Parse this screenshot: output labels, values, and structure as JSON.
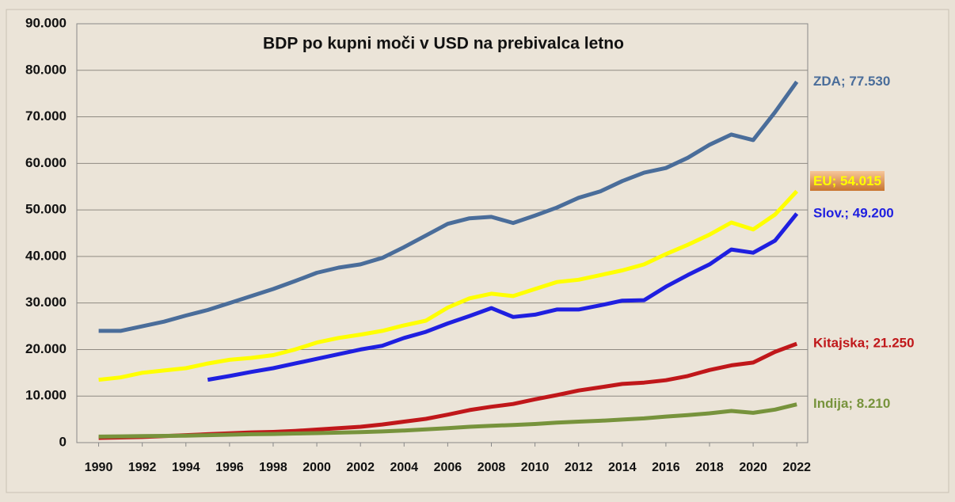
{
  "chart_data": {
    "type": "line",
    "title": "BDP po kupni moči v USD na prebivalca letno",
    "x": [
      1990,
      1991,
      1992,
      1993,
      1994,
      1995,
      1996,
      1997,
      1998,
      1999,
      2000,
      2001,
      2002,
      2003,
      2004,
      2005,
      2006,
      2007,
      2008,
      2009,
      2010,
      2011,
      2012,
      2013,
      2014,
      2015,
      2016,
      2017,
      2018,
      2019,
      2020,
      2021,
      2022
    ],
    "xlim": [
      1989,
      2022.5
    ],
    "xticks": [
      1990,
      1992,
      1994,
      1996,
      1998,
      2000,
      2002,
      2004,
      2006,
      2008,
      2010,
      2012,
      2014,
      2016,
      2018,
      2020,
      2022
    ],
    "ylim": [
      0,
      90000
    ],
    "yticks": [
      0,
      {
        "value": 10000,
        "label": "10.000"
      },
      {
        "value": 20000,
        "label": "20.000"
      },
      {
        "value": 30000,
        "label": "30.000"
      },
      {
        "value": 40000,
        "label": "40.000"
      },
      {
        "value": 50000,
        "label": "50.000"
      },
      {
        "value": 60000,
        "label": "60.000"
      },
      {
        "value": 70000,
        "label": "70.000"
      },
      {
        "value": 80000,
        "label": "80.000"
      },
      {
        "value": 90000,
        "label": "90.000"
      }
    ],
    "grid": true,
    "series": [
      {
        "name": "ZDA; 77.530",
        "color": "#4a6d9a",
        "values": [
          24000,
          24000,
          25000,
          26000,
          27300,
          28500,
          30000,
          31500,
          33000,
          34700,
          36500,
          37600,
          38300,
          39700,
          42000,
          44500,
          47000,
          48200,
          48500,
          47200,
          48800,
          50500,
          52600,
          54000,
          56200,
          58000,
          59000,
          61200,
          64000,
          66200,
          65000,
          71000,
          77530
        ]
      },
      {
        "name": "EU; 54.015",
        "color": "#ffff00",
        "values": [
          13500,
          14000,
          15000,
          15500,
          16000,
          17000,
          17800,
          18200,
          18800,
          20000,
          21500,
          22500,
          23200,
          24000,
          25200,
          26200,
          29000,
          31000,
          32000,
          31500,
          33000,
          34500,
          35000,
          36000,
          37000,
          38300,
          40500,
          42500,
          44700,
          47300,
          45800,
          49000,
          54015
        ]
      },
      {
        "name": "Slov.; 49.200",
        "color": "#1f1fe0",
        "values": [
          null,
          null,
          null,
          null,
          null,
          13500,
          14300,
          15200,
          16000,
          17000,
          18000,
          19000,
          20000,
          20800,
          22500,
          23800,
          25600,
          27200,
          28900,
          27000,
          27500,
          28600,
          28600,
          29500,
          30500,
          30600,
          33500,
          36000,
          38300,
          41500,
          40800,
          43400,
          49200
        ]
      },
      {
        "name": "Kitajska; 21.250",
        "color": "#c0171a",
        "values": [
          1000,
          1100,
          1200,
          1400,
          1600,
          1800,
          2000,
          2200,
          2300,
          2500,
          2800,
          3100,
          3400,
          3900,
          4500,
          5100,
          6000,
          7000,
          7700,
          8300,
          9300,
          10200,
          11200,
          11900,
          12600,
          12900,
          13400,
          14300,
          15600,
          16600,
          17200,
          19500,
          21250
        ]
      },
      {
        "name": "Indija; 8.210",
        "color": "#77933c",
        "values": [
          1300,
          1350,
          1400,
          1450,
          1500,
          1600,
          1700,
          1800,
          1850,
          1950,
          2050,
          2150,
          2250,
          2400,
          2600,
          2850,
          3100,
          3400,
          3600,
          3800,
          4000,
          4300,
          4500,
          4700,
          4950,
          5200,
          5600,
          5900,
          6300,
          6800,
          6400,
          7100,
          8210
        ]
      }
    ]
  }
}
